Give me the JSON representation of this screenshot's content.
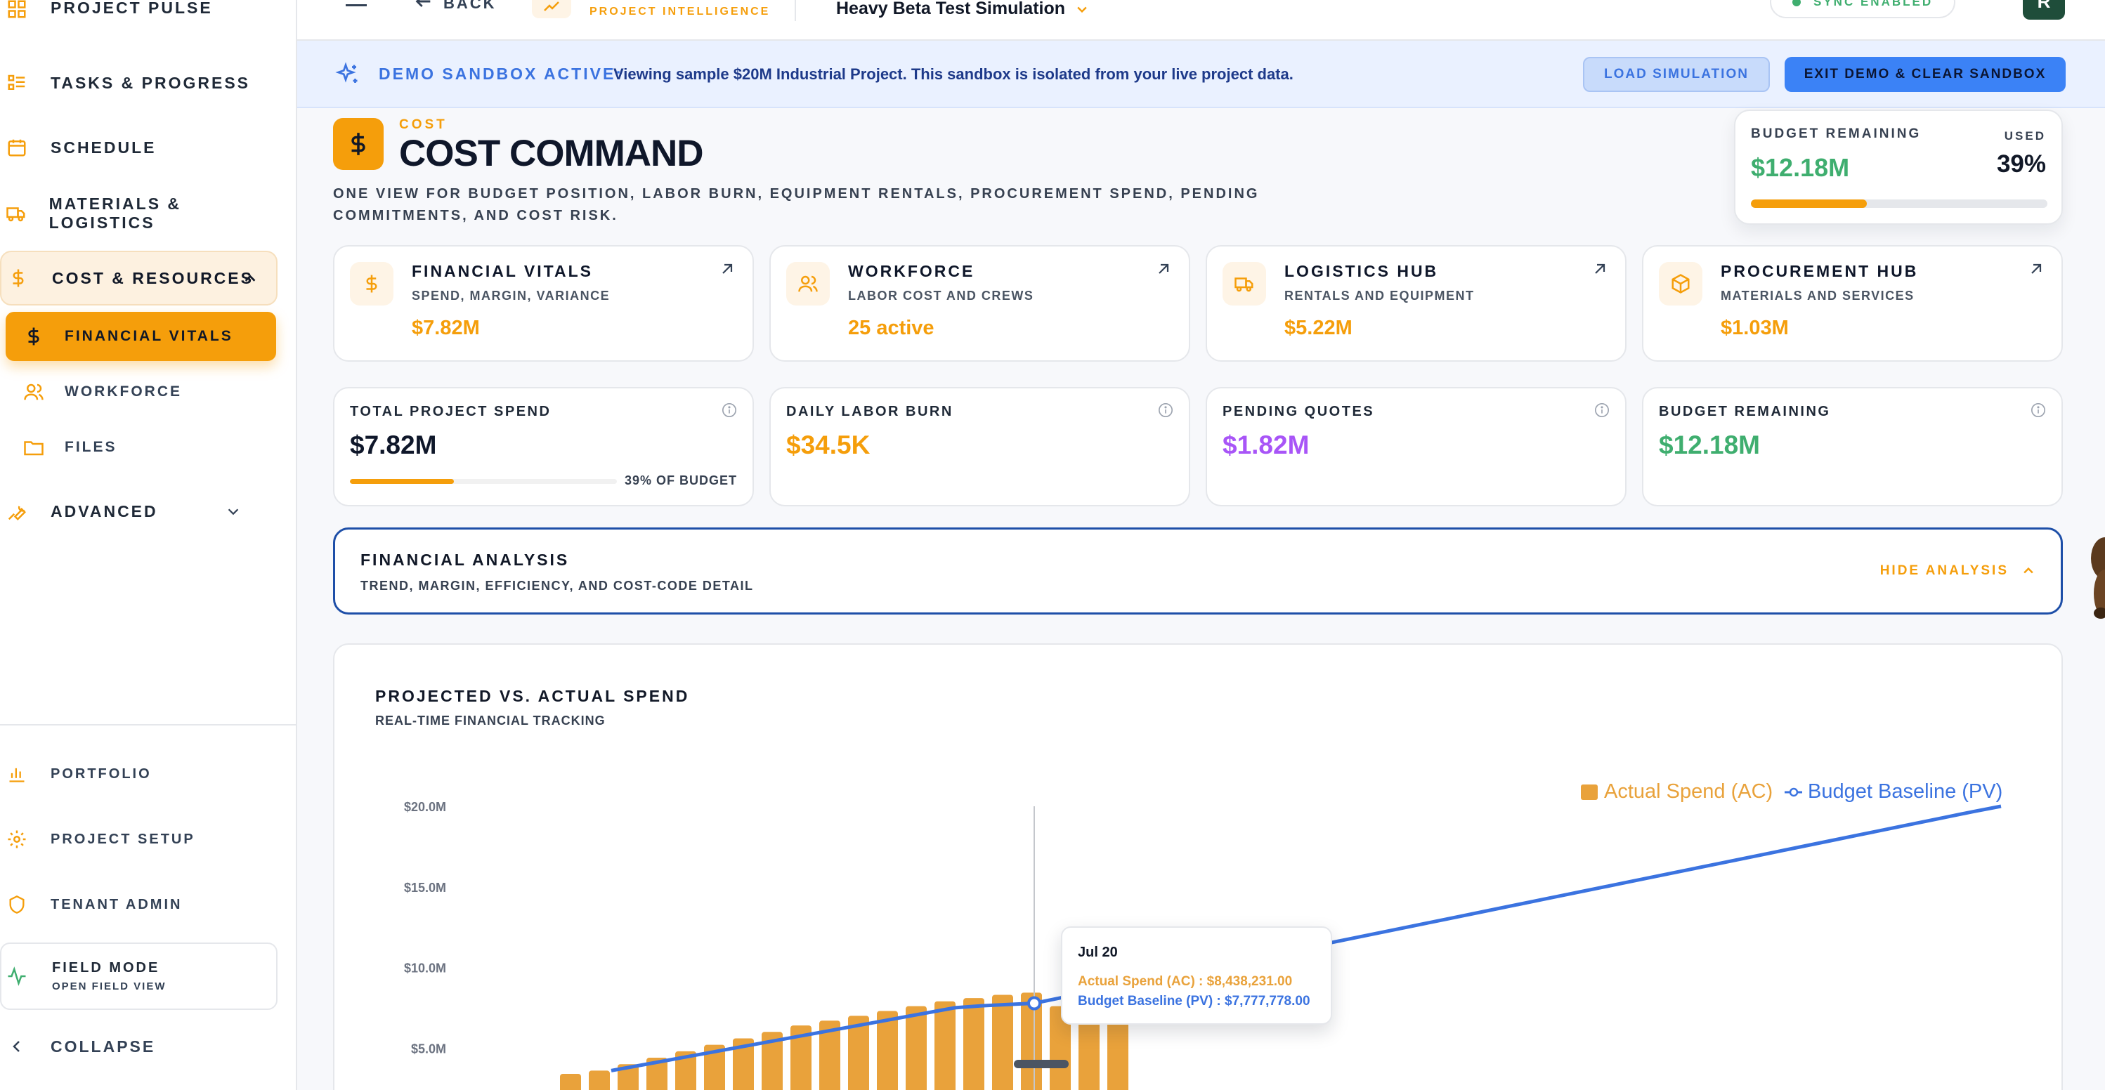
{
  "sidebar": {
    "top_items": [
      {
        "label": "PROJECT PULSE",
        "icon": "grid-icon"
      },
      {
        "label": "TASKS & PROGRESS",
        "icon": "list-icon"
      },
      {
        "label": "SCHEDULE",
        "icon": "calendar-icon"
      },
      {
        "label": "MATERIALS & LOGISTICS",
        "icon": "truck-icon"
      }
    ],
    "group": {
      "label": "COST & RESOURCES",
      "icon": "dollar-icon"
    },
    "sub_items": [
      {
        "label": "FINANCIAL VITALS",
        "icon": "dollar-icon"
      },
      {
        "label": "WORKFORCE",
        "icon": "users-icon"
      },
      {
        "label": "FILES",
        "icon": "folder-icon"
      }
    ],
    "advanced": {
      "label": "ADVANCED",
      "icon": "wrench-icon"
    },
    "bottom_items": [
      {
        "label": "PORTFOLIO",
        "icon": "bar-chart-icon"
      },
      {
        "label": "PROJECT SETUP",
        "icon": "gear-icon"
      },
      {
        "label": "TENANT ADMIN",
        "icon": "shield-icon"
      }
    ],
    "field_mode": {
      "label": "FIELD MODE",
      "sub": "OPEN FIELD VIEW"
    },
    "collapse": "COLLAPSE"
  },
  "topbar": {
    "back": "BACK",
    "brand_sub": "PROJECT INTELLIGENCE",
    "project": "Heavy Beta Test Simulation",
    "sync": "SYNC ENABLED",
    "avatar": "R"
  },
  "banner": {
    "title": "DEMO SANDBOX ACTIVE:",
    "text": "Viewing sample $20M Industrial Project. This sandbox is isolated from your live project data.",
    "load_btn": "LOAD SIMULATION",
    "exit_btn": "EXIT DEMO & CLEAR SANDBOX"
  },
  "header": {
    "eyebrow": "COST",
    "title": "COST COMMAND",
    "desc_line1": "ONE VIEW FOR BUDGET POSITION, LABOR BURN, EQUIPMENT RENTALS, PROCUREMENT SPEND, PENDING",
    "desc_line2": "COMMITMENTS, AND COST RISK."
  },
  "budget_widget": {
    "label": "BUDGET REMAINING",
    "value": "$12.18M",
    "used_label": "USED",
    "used_value": "39%",
    "used_fraction": 0.39
  },
  "hubs": [
    {
      "title": "FINANCIAL VITALS",
      "sub": "SPEND, MARGIN, VARIANCE",
      "value": "$7.82M",
      "icon": "dollar-icon"
    },
    {
      "title": "WORKFORCE",
      "sub": "LABOR COST AND CREWS",
      "value": "25 active",
      "icon": "users-icon"
    },
    {
      "title": "LOGISTICS HUB",
      "sub": "RENTALS AND EQUIPMENT",
      "value": "$5.22M",
      "icon": "truck-icon"
    },
    {
      "title": "PROCUREMENT HUB",
      "sub": "MATERIALS AND SERVICES",
      "value": "$1.03M",
      "icon": "box-icon"
    }
  ],
  "kpis": [
    {
      "label": "TOTAL PROJECT SPEND",
      "value": "$7.82M",
      "color": "#0f172a",
      "note": "39% OF BUDGET",
      "fraction": 0.39
    },
    {
      "label": "DAILY LABOR BURN",
      "value": "$34.5K",
      "color": "#f59e0b"
    },
    {
      "label": "PENDING QUOTES",
      "value": "$1.82M",
      "color": "#a855f7"
    },
    {
      "label": "BUDGET REMAINING",
      "value": "$12.18M",
      "color": "#3fae6f"
    }
  ],
  "analysis": {
    "title": "FINANCIAL ANALYSIS",
    "sub": "TREND, MARGIN, EFFICIENCY, AND COST-CODE DETAIL",
    "toggle": "HIDE ANALYSIS"
  },
  "chart_panel": {
    "title": "PROJECTED VS. ACTUAL SPEND",
    "sub": "REAL-TIME FINANCIAL TRACKING",
    "tooltip": {
      "date": "Jul 20",
      "ac": "Actual Spend (AC) : $8,438,231.00",
      "pv": "Budget Baseline (PV) : $7,777,778.00"
    }
  },
  "chart_data": {
    "type": "bar",
    "title": "PROJECTED VS. ACTUAL SPEND",
    "ylim": [
      0,
      20000000
    ],
    "yticks": [
      "$5.0M",
      "$10.0M",
      "$15.0M",
      "$20.0M"
    ],
    "ytick_values": [
      5000000,
      10000000,
      15000000,
      20000000
    ],
    "legend_position": "top-right",
    "series": [
      {
        "name": "Actual Spend (AC)",
        "kind": "bar",
        "color": "#e9a23b",
        "values": [
          3400000,
          3600000,
          4000000,
          4400000,
          4800000,
          5200000,
          5600000,
          6000000,
          6400000,
          6700000,
          7000000,
          7300000,
          7600000,
          7900000,
          8100000,
          8300000,
          8438231,
          7600000,
          7600000,
          7600000
        ]
      },
      {
        "name": "Budget Baseline (PV)",
        "kind": "line",
        "color": "#3b73e0",
        "values": [
          3600000,
          3900000,
          4200000,
          4500000,
          4800000,
          5100000,
          5400000,
          5700000,
          6000000,
          6300000,
          6600000,
          6900000,
          7200000,
          7500000,
          7620000,
          7700000,
          7777778,
          8140000,
          8500000,
          8860000,
          9220000,
          9580000,
          9940000,
          10300000,
          10660000,
          11020000,
          11380000,
          11740000,
          12100000,
          12460000,
          12820000,
          13180000,
          13540000,
          13900000,
          14260000,
          14620000,
          14980000,
          15340000,
          15700000,
          16060000,
          16420000,
          16780000,
          17140000,
          17500000,
          17860000,
          18220000,
          18580000,
          18940000,
          19300000,
          19660000,
          20000000
        ]
      }
    ],
    "highlight_index": 16
  },
  "colors": {
    "accent": "#f59e0b",
    "blue": "#3b73e0",
    "green": "#3fae6f",
    "purple": "#a855f7"
  }
}
